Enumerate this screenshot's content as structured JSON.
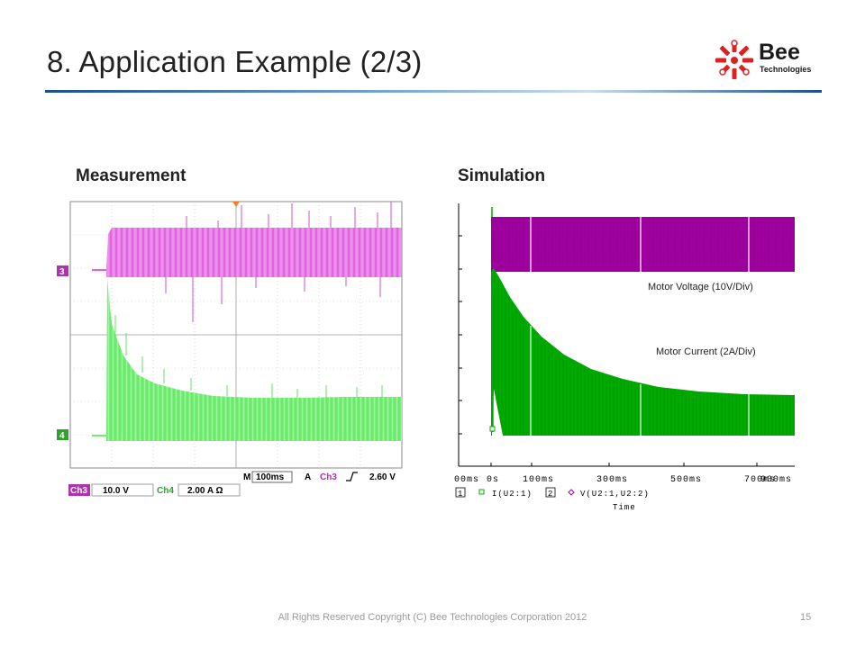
{
  "slide": {
    "title": "8. Application Example (2/3)",
    "footer": "All Rights Reserved Copyright (C) Bee Technologies Corporation 2012",
    "page_number": "15"
  },
  "logo": {
    "word": "Bee",
    "sub": "Technologies",
    "icon": "flower-logo-icon",
    "color": "#e02020"
  },
  "measurement": {
    "heading": "Measurement",
    "ch3_marker": "3",
    "ch4_marker": "4",
    "ch3_label": "Ch3",
    "ch3_scale": "10.0 V",
    "ch4_label": "Ch4",
    "ch4_scale": "2.00 A Ω",
    "timebase_m": "M",
    "timebase_value": "100ms",
    "trigger_a": "A",
    "trigger_channel": "Ch3",
    "trigger_level": "2.60 V",
    "ch3_color": "#e060e0",
    "ch4_color": "#70f070"
  },
  "simulation": {
    "heading": "Simulation",
    "voltage_label": "Motor Voltage (10V/Div)",
    "current_label": "Motor Current (2A/Div)",
    "x_ticks": [
      "00ms",
      "0s",
      "100ms",
      "300ms",
      "500ms",
      "700ms",
      "900ms"
    ],
    "x_label": "Time",
    "legend_1_index": "1",
    "legend_1_trace": "I(U2:1)",
    "legend_2_index": "2",
    "legend_2_trace": "V(U2:1,U2:2)",
    "voltage_color": "#a000a0",
    "current_color": "#00aa00"
  }
}
